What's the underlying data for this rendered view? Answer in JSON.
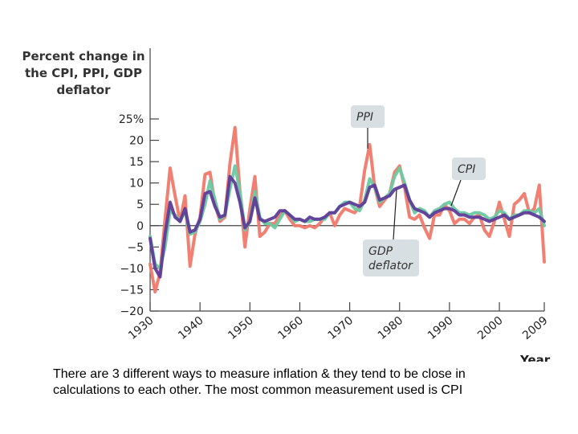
{
  "caption": "There are 3 different ways to measure inflation & they tend to be close in calculations to each other. The most common measurement used is CPI",
  "chart_data": {
    "type": "line",
    "title": "",
    "ylabel_lines": [
      "Percent change in",
      "the CPI, PPI, GDP",
      "deflator"
    ],
    "xlabel": "Year",
    "ylim": [
      -20,
      25
    ],
    "xlim": [
      1930,
      2009
    ],
    "y_ticks": [
      -20,
      -15,
      -10,
      -5,
      0,
      5,
      10,
      15,
      20,
      25
    ],
    "y_tick_labels": [
      "−20",
      "−15",
      "−10",
      "−5",
      "0",
      "5",
      "10",
      "15",
      "20",
      "25%"
    ],
    "x_ticks": [
      1930,
      1940,
      1950,
      1960,
      1970,
      1980,
      1990,
      2000,
      2009
    ],
    "x_tick_labels": [
      "1930",
      "1940",
      "1950",
      "1960",
      "1970",
      "1980",
      "1990",
      "2000",
      "2009"
    ],
    "grid": false,
    "callouts": [
      {
        "series": "PPI",
        "lines": [
          "PPI"
        ]
      },
      {
        "series": "CPI",
        "lines": [
          "CPI"
        ]
      },
      {
        "series": "GDP deflator",
        "lines": [
          "GDP",
          "deflator"
        ]
      }
    ],
    "series": [
      {
        "name": "PPI",
        "color": "#f0796a",
        "x": [
          1930,
          1931,
          1932,
          1933,
          1934,
          1935,
          1936,
          1937,
          1938,
          1939,
          1940,
          1941,
          1942,
          1943,
          1944,
          1945,
          1946,
          1947,
          1948,
          1949,
          1950,
          1951,
          1952,
          1953,
          1954,
          1955,
          1956,
          1957,
          1958,
          1959,
          1960,
          1961,
          1962,
          1963,
          1964,
          1965,
          1966,
          1967,
          1968,
          1969,
          1970,
          1971,
          1972,
          1973,
          1974,
          1975,
          1976,
          1977,
          1978,
          1979,
          1980,
          1981,
          1982,
          1983,
          1984,
          1985,
          1986,
          1987,
          1988,
          1989,
          1990,
          1991,
          1992,
          1993,
          1994,
          1995,
          1996,
          1997,
          1998,
          1999,
          2000,
          2001,
          2002,
          2003,
          2004,
          2005,
          2006,
          2007,
          2008,
          2009
        ],
        "y": [
          -9,
          -15.5,
          -11,
          1.5,
          13.5,
          7,
          1,
          7,
          -9.5,
          -2,
          2,
          12,
          12.5,
          5,
          1,
          2,
          14.5,
          23,
          8,
          -5,
          4,
          11.5,
          -2.5,
          -1.5,
          0.5,
          0.5,
          2.5,
          3.5,
          1.5,
          0,
          0,
          -0.5,
          0,
          -0.5,
          0.5,
          2,
          3,
          0,
          2.5,
          4,
          3.5,
          3,
          4.5,
          13,
          19,
          9,
          4.5,
          6,
          7.5,
          12.5,
          14,
          9,
          2,
          1.5,
          2.5,
          -0.5,
          -3,
          2.5,
          2.5,
          5,
          3.5,
          0.5,
          1.5,
          1.5,
          0.5,
          2,
          2.5,
          -1,
          -2.5,
          1,
          5.5,
          1.5,
          -2.5,
          5,
          6,
          7.5,
          3,
          4,
          9.5,
          -8.5
        ]
      },
      {
        "name": "CPI",
        "color": "#6cc9a1",
        "x": [
          1930,
          1931,
          1932,
          1933,
          1934,
          1935,
          1936,
          1937,
          1938,
          1939,
          1940,
          1941,
          1942,
          1943,
          1944,
          1945,
          1946,
          1947,
          1948,
          1949,
          1950,
          1951,
          1952,
          1953,
          1954,
          1955,
          1956,
          1957,
          1958,
          1959,
          1960,
          1961,
          1962,
          1963,
          1964,
          1965,
          1966,
          1967,
          1968,
          1969,
          1970,
          1971,
          1972,
          1973,
          1974,
          1975,
          1976,
          1977,
          1978,
          1979,
          1980,
          1981,
          1982,
          1983,
          1984,
          1985,
          1986,
          1987,
          1988,
          1989,
          1990,
          1991,
          1992,
          1993,
          1994,
          1995,
          1996,
          1997,
          1998,
          1999,
          2000,
          2001,
          2002,
          2003,
          2004,
          2005,
          2006,
          2007,
          2008,
          2009
        ],
        "y": [
          -2.5,
          -9,
          -10,
          -5,
          3.5,
          2.5,
          1,
          3.5,
          -2,
          -1.5,
          1,
          5,
          10.5,
          6,
          1.5,
          2.5,
          8.5,
          14,
          8,
          -1,
          1,
          8,
          2,
          0.5,
          0.5,
          -0.5,
          1.5,
          3.5,
          2.5,
          1,
          1.5,
          1,
          1,
          1.5,
          1.5,
          1.5,
          3,
          3,
          4.5,
          5.5,
          5.5,
          4,
          3.5,
          6,
          11,
          9,
          5.5,
          6.5,
          7.5,
          11.5,
          13.5,
          10,
          6,
          3,
          4,
          3.5,
          2,
          3.5,
          4,
          5,
          5.5,
          4,
          3,
          3,
          2.5,
          3,
          3,
          2.5,
          1.5,
          2,
          3.5,
          3,
          1.5,
          2.5,
          2.5,
          3.5,
          3.5,
          3,
          4,
          0
        ]
      },
      {
        "name": "GDP deflator",
        "color": "#5e3c99",
        "x": [
          1930,
          1931,
          1932,
          1933,
          1934,
          1935,
          1936,
          1937,
          1938,
          1939,
          1940,
          1941,
          1942,
          1943,
          1944,
          1945,
          1946,
          1947,
          1948,
          1949,
          1950,
          1951,
          1952,
          1953,
          1954,
          1955,
          1956,
          1957,
          1958,
          1959,
          1960,
          1961,
          1962,
          1963,
          1964,
          1965,
          1966,
          1967,
          1968,
          1969,
          1970,
          1971,
          1972,
          1973,
          1974,
          1975,
          1976,
          1977,
          1978,
          1979,
          1980,
          1981,
          1982,
          1983,
          1984,
          1985,
          1986,
          1987,
          1988,
          1989,
          1990,
          1991,
          1992,
          1993,
          1994,
          1995,
          1996,
          1997,
          1998,
          1999,
          2000,
          2001,
          2002,
          2003,
          2004,
          2005,
          2006,
          2007,
          2008,
          2009
        ],
        "y": [
          -3,
          -10,
          -12,
          -2,
          5.5,
          2,
          1,
          4,
          -1.5,
          -1,
          1.5,
          7.5,
          8,
          4.5,
          2,
          2.5,
          11.5,
          10,
          5.5,
          -0.5,
          1,
          6.5,
          1.5,
          1,
          1.5,
          2,
          3.5,
          3.5,
          2.5,
          1.5,
          1.5,
          1,
          2,
          1.5,
          1.5,
          2,
          3,
          3,
          4.5,
          5,
          5.5,
          5,
          4.5,
          5.5,
          9,
          9.5,
          6,
          6.5,
          7,
          8.5,
          9,
          9.5,
          6,
          4,
          3.5,
          3,
          2,
          3,
          3.5,
          4,
          4,
          3.5,
          2.5,
          2.5,
          2,
          2,
          2,
          1.5,
          1,
          1.5,
          2,
          2.5,
          1.5,
          2,
          2.5,
          3,
          3,
          2.5,
          2,
          1
        ]
      }
    ]
  }
}
